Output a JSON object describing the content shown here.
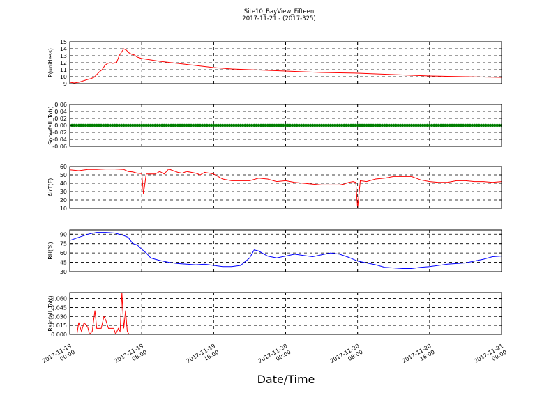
{
  "figure": {
    "title_line1": "Site10_BayView_Fifteen",
    "title_line2": "2017-11-21 - (2017-325)",
    "xlabel": "Date/Time",
    "x_ticks": [
      {
        "l1": "2017-11-19",
        "l2": "00:00",
        "h": 0
      },
      {
        "l1": "2017-11-19",
        "l2": "08:00",
        "h": 8
      },
      {
        "l1": "2017-11-19",
        "l2": "16:00",
        "h": 16
      },
      {
        "l1": "2017-11-20",
        "l2": "00:00",
        "h": 24
      },
      {
        "l1": "2017-11-20",
        "l2": "08:00",
        "h": 32
      },
      {
        "l1": "2017-11-20",
        "l2": "16:00",
        "h": 40
      },
      {
        "l1": "2017-11-21",
        "l2": "00:00",
        "h": 48
      }
    ]
  },
  "chart_data": [
    {
      "type": "line",
      "ylabel": "P(unitless)",
      "ylim": [
        9,
        15
      ],
      "yticks": [
        9,
        10,
        11,
        12,
        13,
        14,
        15
      ],
      "yticklabels": [
        "9",
        "10",
        "11",
        "12",
        "13",
        "14",
        "15"
      ],
      "grid": true,
      "color": "#ff0000",
      "x": [
        0,
        0.5,
        1,
        1.5,
        2,
        2.3,
        2.7,
        3,
        3.3,
        3.6,
        3.9,
        4.2,
        4.5,
        4.8,
        5,
        5.2,
        5.5,
        5.8,
        6,
        6.3,
        6.6,
        6.9,
        7.2,
        7.5,
        8,
        9,
        10,
        12,
        14,
        16,
        18,
        20,
        22,
        24,
        26,
        28,
        30,
        32,
        34,
        36,
        38,
        40,
        42,
        44,
        46,
        48
      ],
      "y": [
        9.2,
        9.1,
        9.2,
        9.4,
        9.6,
        9.7,
        9.9,
        10.3,
        10.7,
        11.0,
        11.6,
        11.9,
        12.0,
        11.9,
        12.0,
        12.0,
        13.0,
        13.6,
        14.0,
        13.8,
        13.4,
        13.2,
        13.1,
        12.8,
        12.6,
        12.4,
        12.2,
        11.9,
        11.6,
        11.3,
        11.1,
        11.0,
        10.9,
        10.8,
        10.7,
        10.6,
        10.55,
        10.5,
        10.4,
        10.3,
        10.2,
        10.1,
        10.05,
        10.0,
        9.95,
        9.9
      ]
    },
    {
      "type": "scatter",
      "ylabel": "Snowfall_Tot()",
      "ylim": [
        -0.06,
        0.06
      ],
      "yticks": [
        -0.06,
        -0.04,
        -0.02,
        0.0,
        0.02,
        0.04,
        0.06
      ],
      "yticklabels": [
        "-0.06",
        "-0.04",
        "-0.02",
        "0.00",
        "0.02",
        "0.04",
        "0.06"
      ],
      "grid": true,
      "color": "#007f00",
      "constant_value": 0.0,
      "x_range": [
        0,
        48
      ],
      "point_spacing_h": 0.25
    },
    {
      "type": "line",
      "ylabel": "AirT(F)",
      "ylim": [
        10,
        60
      ],
      "yticks": [
        10,
        20,
        30,
        40,
        50,
        60
      ],
      "yticklabels": [
        "10",
        "20",
        "30",
        "40",
        "50",
        "60"
      ],
      "grid": true,
      "color": "#ff0000",
      "x": [
        0,
        1,
        2,
        3,
        4,
        5,
        6,
        6.5,
        7,
        7.5,
        8,
        8.2,
        8.5,
        9,
        9.5,
        10,
        10.5,
        11,
        11.5,
        12,
        12.5,
        13,
        13.5,
        14,
        14.5,
        15,
        16,
        17,
        18,
        19,
        20,
        21,
        22,
        23,
        24,
        25,
        26,
        27,
        28,
        29,
        30,
        30.5,
        31,
        31.5,
        31.8,
        32,
        32.3,
        33,
        34,
        35,
        36,
        37,
        38,
        39,
        40,
        41,
        42,
        43,
        44,
        45,
        46,
        47,
        48
      ],
      "y": [
        56,
        55,
        56.5,
        56.5,
        57,
        57,
        56.5,
        54,
        53.5,
        52,
        51.5,
        27,
        51,
        51,
        51,
        54,
        51,
        57,
        55,
        53,
        52,
        54,
        53,
        52,
        50,
        53,
        51,
        45,
        43,
        43,
        43,
        46,
        45,
        42,
        43,
        41,
        40,
        39,
        38,
        38,
        38,
        39,
        41,
        42,
        41,
        10,
        43,
        42,
        45,
        46,
        48,
        48,
        48,
        44,
        42,
        41,
        41,
        43,
        43,
        42,
        42,
        41,
        42
      ]
    },
    {
      "type": "line",
      "ylabel": "RH(%)",
      "ylim": [
        30,
        97
      ],
      "yticks": [
        30,
        45,
        60,
        75,
        90
      ],
      "yticklabels": [
        "30",
        "45",
        "60",
        "75",
        "90"
      ],
      "grid": true,
      "color": "#0000ff",
      "x": [
        0,
        1,
        2,
        3,
        4,
        5,
        6,
        6.5,
        7,
        7.5,
        8,
        8.5,
        9,
        9.5,
        10,
        11,
        12,
        13,
        14,
        15,
        16,
        17,
        18,
        19,
        20,
        20.5,
        21,
        22,
        23,
        24,
        25,
        26,
        27,
        28,
        29,
        30,
        31,
        31.5,
        32,
        33,
        34,
        35,
        36,
        37,
        38,
        39,
        40,
        41,
        42,
        43,
        44,
        45,
        46,
        47,
        48
      ],
      "y": [
        80,
        85,
        90,
        93,
        93,
        92,
        88,
        85,
        75,
        73,
        66,
        60,
        52,
        50,
        48,
        45,
        43,
        42,
        41,
        42,
        40,
        38,
        38,
        40,
        52,
        65,
        63,
        55,
        52,
        55,
        58,
        56,
        54,
        57,
        60,
        58,
        53,
        50,
        47,
        44,
        41,
        37,
        36,
        35,
        35,
        37,
        38,
        40,
        42,
        43,
        44,
        47,
        50,
        54,
        55
      ]
    },
    {
      "type": "line",
      "ylabel": "Rainfall_Tot()",
      "ylim": [
        0,
        0.07
      ],
      "yticks": [
        0.0,
        0.015,
        0.03,
        0.045,
        0.06
      ],
      "yticklabels": [
        "0.000",
        "0.015",
        "0.030",
        "0.045",
        "0.060"
      ],
      "grid": true,
      "color": "#ff0000",
      "x": [
        0,
        0.8,
        1,
        1.3,
        1.6,
        2,
        2.2,
        2.5,
        2.8,
        3,
        3.2,
        3.5,
        3.8,
        4,
        4.3,
        4.6,
        4.9,
        5.1,
        5.4,
        5.6,
        5.8,
        6.0,
        6.2,
        6.4,
        6.6,
        6.8,
        7,
        8,
        10,
        12,
        14,
        16,
        18,
        20,
        22,
        24,
        26,
        28,
        30,
        32,
        34,
        36,
        38,
        40,
        42,
        44,
        46,
        48
      ],
      "y": [
        0,
        0,
        0.02,
        0.005,
        0.02,
        0.012,
        0,
        0.005,
        0.04,
        0.01,
        0.01,
        0.01,
        0.03,
        0.024,
        0.01,
        0.01,
        0.01,
        0.0,
        0.01,
        0.005,
        0.07,
        0.01,
        0.04,
        0.005,
        0,
        0,
        0,
        0,
        0,
        0,
        0,
        0,
        0,
        0,
        0,
        0,
        0,
        0,
        0,
        0,
        0,
        0,
        0,
        0,
        0,
        0,
        0,
        0
      ]
    }
  ]
}
